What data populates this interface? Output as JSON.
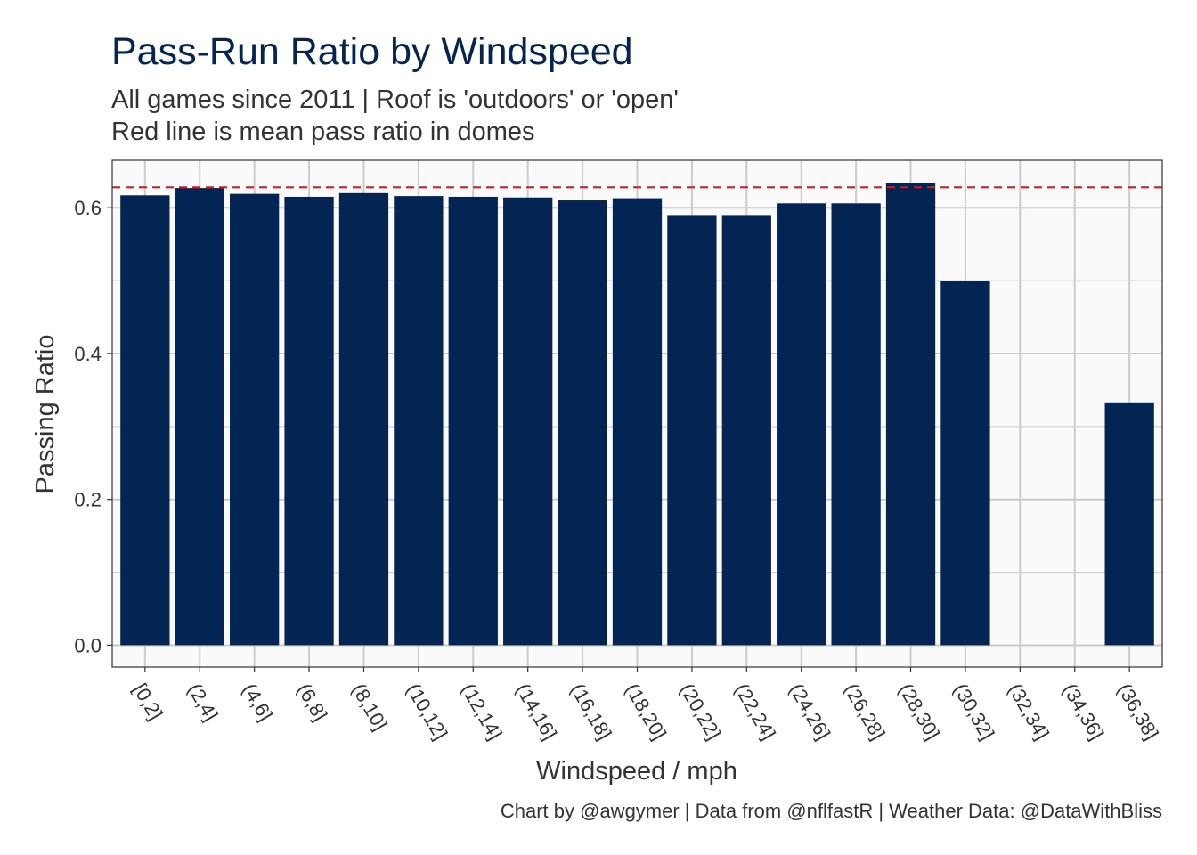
{
  "colors": {
    "bar": "#042453",
    "title": "#042453",
    "reference_line": "#d7191c",
    "text": "#333333",
    "grid": "#cccccc",
    "panel_bg": "#fafafa"
  },
  "chart_data": {
    "type": "bar",
    "title": "Pass-Run Ratio by Windspeed",
    "subtitle_lines": [
      "All games since 2011 | Roof is 'outdoors' or 'open'",
      "Red line is mean pass ratio in domes"
    ],
    "xlabel": "Windspeed / mph",
    "ylabel": "Passing Ratio",
    "caption": "Chart by @awgymer | Data from @nflfastR | Weather Data: @DataWithBliss",
    "categories": [
      "[0,2]",
      "(2,4]",
      "(4,6]",
      "(6,8]",
      "(8,10]",
      "(10,12]",
      "(12,14]",
      "(14,16]",
      "(16,18]",
      "(18,20]",
      "(20,22]",
      "(22,24]",
      "(24,26]",
      "(26,28]",
      "(28,30]",
      "(30,32]",
      "(32,34]",
      "(34,36]",
      "(36,38]"
    ],
    "values": [
      0.617,
      0.627,
      0.619,
      0.615,
      0.62,
      0.616,
      0.615,
      0.614,
      0.61,
      0.613,
      0.59,
      0.59,
      0.606,
      0.606,
      0.634,
      0.5,
      null,
      null,
      0.333
    ],
    "reference_line": {
      "value": 0.628,
      "style": "dashed"
    },
    "ylim": [
      -0.03,
      0.665
    ],
    "yticks": [
      0.0,
      0.2,
      0.4,
      0.6
    ],
    "ytick_labels": [
      "0.0",
      "0.2",
      "0.4",
      "0.6"
    ],
    "grid": true,
    "legend": "none"
  }
}
